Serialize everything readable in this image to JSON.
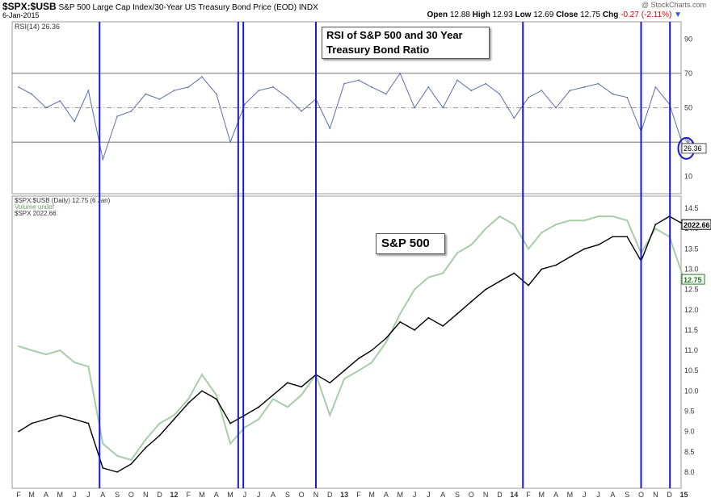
{
  "header": {
    "symbol": "$SPX:$USB",
    "description": "S&P 500 Large Cap Index/30-Year US Treasury Bond Price (EOD)",
    "exchange": "INDX",
    "date": "6-Jan-2015",
    "watermark": "@ StockCharts.com",
    "open_label": "Open",
    "open": "12.88",
    "high_label": "High",
    "high": "12.93",
    "low_label": "Low",
    "low": "12.69",
    "close_label": "Close",
    "close": "12.75",
    "chg_label": "Chg",
    "chg": "-0.27 (-2.11%)",
    "chg_arrow": "▼"
  },
  "annotations": {
    "rsi_box_line1": "RSI of S&P 500 and 30 Year",
    "rsi_box_line2": "Treasury Bond Ratio",
    "sp_box": "S&P 500"
  },
  "colors": {
    "rsi_line": "#5a6ea6",
    "ratio_line": "#a8ccaa",
    "spx_line": "#000000",
    "vertical_markers": "#1a1acc",
    "close_badge": "#1a7a1a"
  },
  "chart_data": [
    {
      "type": "line",
      "panel": "upper",
      "legend": "RSI(14) 26.36",
      "current_value_label": "26.36",
      "ylim": [
        0,
        100
      ],
      "yticks": [
        "10",
        "30",
        "50",
        "70",
        "90"
      ],
      "reference_lines": [
        30,
        50,
        70
      ],
      "series": [
        {
          "x": [
            "2011-02",
            "2011-03",
            "2011-04",
            "2011-05",
            "2011-06",
            "2011-07",
            "2011-08",
            "2011-09",
            "2011-10",
            "2011-11",
            "2011-12",
            "2012-01",
            "2012-02",
            "2012-03",
            "2012-04",
            "2012-05",
            "2012-06",
            "2012-07",
            "2012-08",
            "2012-09",
            "2012-10",
            "2012-11",
            "2012-12",
            "2013-01",
            "2013-02",
            "2013-03",
            "2013-04",
            "2013-05",
            "2013-06",
            "2013-07",
            "2013-08",
            "2013-09",
            "2013-10",
            "2013-11",
            "2013-12",
            "2014-01",
            "2014-02",
            "2014-03",
            "2014-04",
            "2014-05",
            "2014-06",
            "2014-07",
            "2014-08",
            "2014-09",
            "2014-10",
            "2014-11",
            "2014-12",
            "2015-01"
          ],
          "y": [
            62,
            58,
            50,
            54,
            42,
            60,
            20,
            45,
            48,
            58,
            55,
            60,
            62,
            68,
            58,
            30,
            52,
            60,
            62,
            56,
            48,
            55,
            38,
            64,
            66,
            62,
            58,
            70,
            50,
            62,
            50,
            66,
            60,
            64,
            58,
            44,
            56,
            60,
            50,
            60,
            62,
            64,
            58,
            56,
            36,
            62,
            52,
            26.36
          ]
        }
      ]
    },
    {
      "type": "line",
      "panel": "lower",
      "legend": [
        "$SPX:$USB (Daily) 12.75 (6 Jan)",
        "Volume undef",
        "$SPX 2022.66"
      ],
      "ylim": [
        7.6,
        14.8
      ],
      "yticks": [
        "8.0",
        "8.5",
        "9.0",
        "9.5",
        "10.0",
        "10.5",
        "11.0",
        "11.5",
        "12.0",
        "12.5",
        "13.0",
        "13.5",
        "14.0",
        "14.5"
      ],
      "last_value_labels": {
        "spx": "2022.66",
        "ratio": "12.75"
      },
      "x_tick_labels": [
        "F",
        "M",
        "A",
        "M",
        "J",
        "J",
        "A",
        "S",
        "O",
        "N",
        "D",
        "12",
        "F",
        "M",
        "A",
        "M",
        "J",
        "J",
        "A",
        "S",
        "O",
        "N",
        "D",
        "13",
        "F",
        "M",
        "A",
        "M",
        "J",
        "J",
        "A",
        "S",
        "O",
        "N",
        "D",
        "14",
        "F",
        "M",
        "A",
        "M",
        "J",
        "J",
        "A",
        "S",
        "O",
        "N",
        "D",
        "15"
      ],
      "x": [
        "2011-02",
        "2011-03",
        "2011-04",
        "2011-05",
        "2011-06",
        "2011-07",
        "2011-08",
        "2011-09",
        "2011-10",
        "2011-11",
        "2011-12",
        "2012-01",
        "2012-02",
        "2012-03",
        "2012-04",
        "2012-05",
        "2012-06",
        "2012-07",
        "2012-08",
        "2012-09",
        "2012-10",
        "2012-11",
        "2012-12",
        "2013-01",
        "2013-02",
        "2013-03",
        "2013-04",
        "2013-05",
        "2013-06",
        "2013-07",
        "2013-08",
        "2013-09",
        "2013-10",
        "2013-11",
        "2013-12",
        "2014-01",
        "2014-02",
        "2014-03",
        "2014-04",
        "2014-05",
        "2014-06",
        "2014-07",
        "2014-08",
        "2014-09",
        "2014-10",
        "2014-11",
        "2014-12",
        "2015-01"
      ],
      "series": [
        {
          "name": "$SPX:$USB (Daily) 12.75 (6 Jan)",
          "y": [
            11.1,
            11.0,
            10.9,
            11.0,
            10.7,
            10.6,
            8.7,
            8.4,
            8.3,
            8.8,
            9.2,
            9.4,
            9.8,
            10.4,
            9.9,
            8.7,
            9.1,
            9.3,
            9.8,
            9.6,
            9.9,
            10.4,
            9.4,
            10.3,
            10.5,
            10.7,
            11.2,
            11.9,
            12.5,
            12.8,
            12.9,
            13.4,
            13.6,
            14.0,
            14.3,
            14.1,
            13.5,
            13.9,
            14.1,
            14.2,
            14.2,
            14.3,
            14.3,
            14.2,
            13.4,
            14.0,
            13.8,
            12.75
          ]
        },
        {
          "name": "$SPX 2022.66",
          "y": [
            9.0,
            9.2,
            9.3,
            9.4,
            9.3,
            9.2,
            8.1,
            8.0,
            8.2,
            8.6,
            8.9,
            9.3,
            9.7,
            10.0,
            9.8,
            9.2,
            9.4,
            9.6,
            9.9,
            10.2,
            10.1,
            10.4,
            10.2,
            10.5,
            10.8,
            11.0,
            11.3,
            11.7,
            11.5,
            11.8,
            11.6,
            11.9,
            12.2,
            12.5,
            12.7,
            12.9,
            12.6,
            13.0,
            13.1,
            13.3,
            13.5,
            13.6,
            13.8,
            13.8,
            13.2,
            14.1,
            14.3,
            14.1
          ]
        }
      ],
      "vertical_marker_dates": [
        "2011-08-08",
        "2012-06-01",
        "2012-06-12",
        "2012-11-15",
        "2014-02-03",
        "2014-10-15",
        "2014-12-16"
      ]
    }
  ]
}
